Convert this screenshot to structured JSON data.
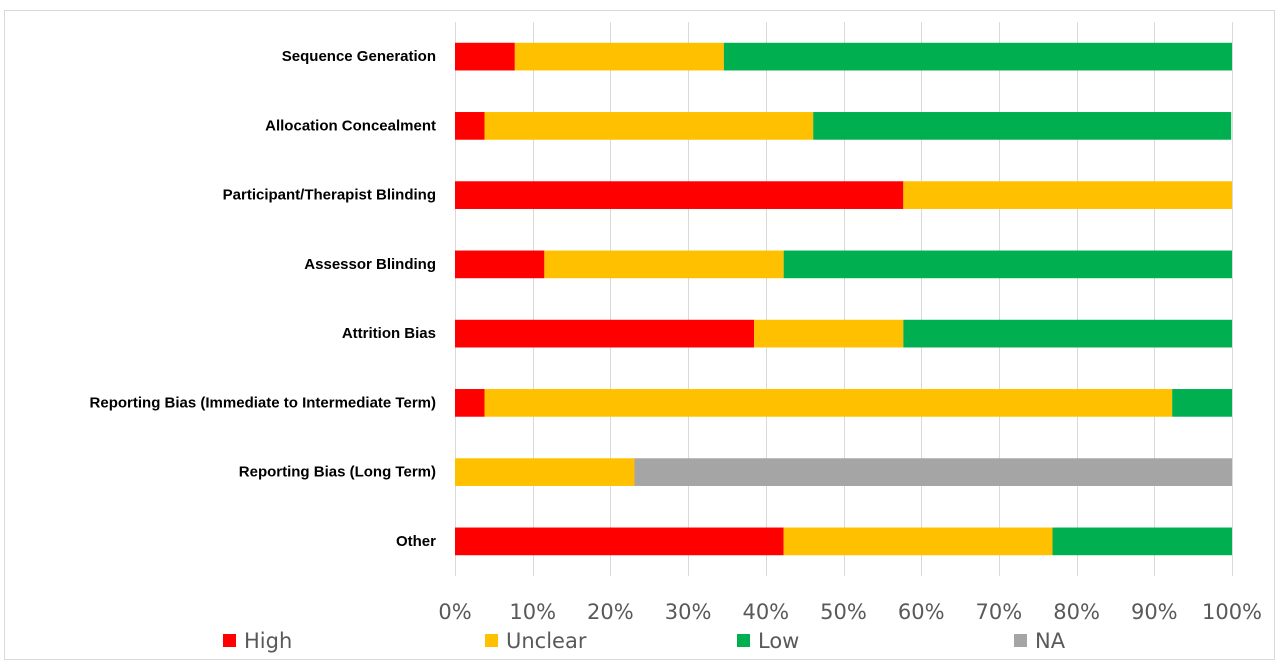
{
  "chart_data": {
    "type": "bar",
    "orientation": "horizontal",
    "stacked": "percent",
    "title": "",
    "xlabel": "",
    "ylabel": "",
    "xlim": [
      0,
      100
    ],
    "x_ticks": [
      "0%",
      "10%",
      "20%",
      "30%",
      "40%",
      "50%",
      "60%",
      "70%",
      "80%",
      "90%",
      "100%"
    ],
    "grid": "vertical",
    "legend_position": "bottom",
    "categories": [
      "Sequence Generation",
      "Allocation Concealment",
      "Participant/Therapist Blinding",
      "Assessor Blinding",
      "Attrition Bias",
      "Reporting Bias (Immediate to Intermediate Term)",
      "Reporting Bias (Long Term)",
      "Other"
    ],
    "series": [
      {
        "name": "High",
        "color": "#ff0000",
        "values": [
          7.7,
          3.8,
          57.7,
          11.5,
          38.5,
          3.8,
          0,
          42.3
        ]
      },
      {
        "name": "Unclear",
        "color": "#ffc000",
        "values": [
          26.9,
          42.3,
          42.3,
          30.8,
          19.2,
          88.5,
          23.1,
          34.6
        ]
      },
      {
        "name": "Low",
        "color": "#00b050",
        "values": [
          65.4,
          53.8,
          0,
          57.7,
          42.3,
          7.7,
          0,
          23.1
        ]
      },
      {
        "name": "NA",
        "color": "#a5a5a5",
        "values": [
          0,
          0,
          0,
          0,
          0,
          0,
          76.9,
          0
        ]
      }
    ]
  }
}
